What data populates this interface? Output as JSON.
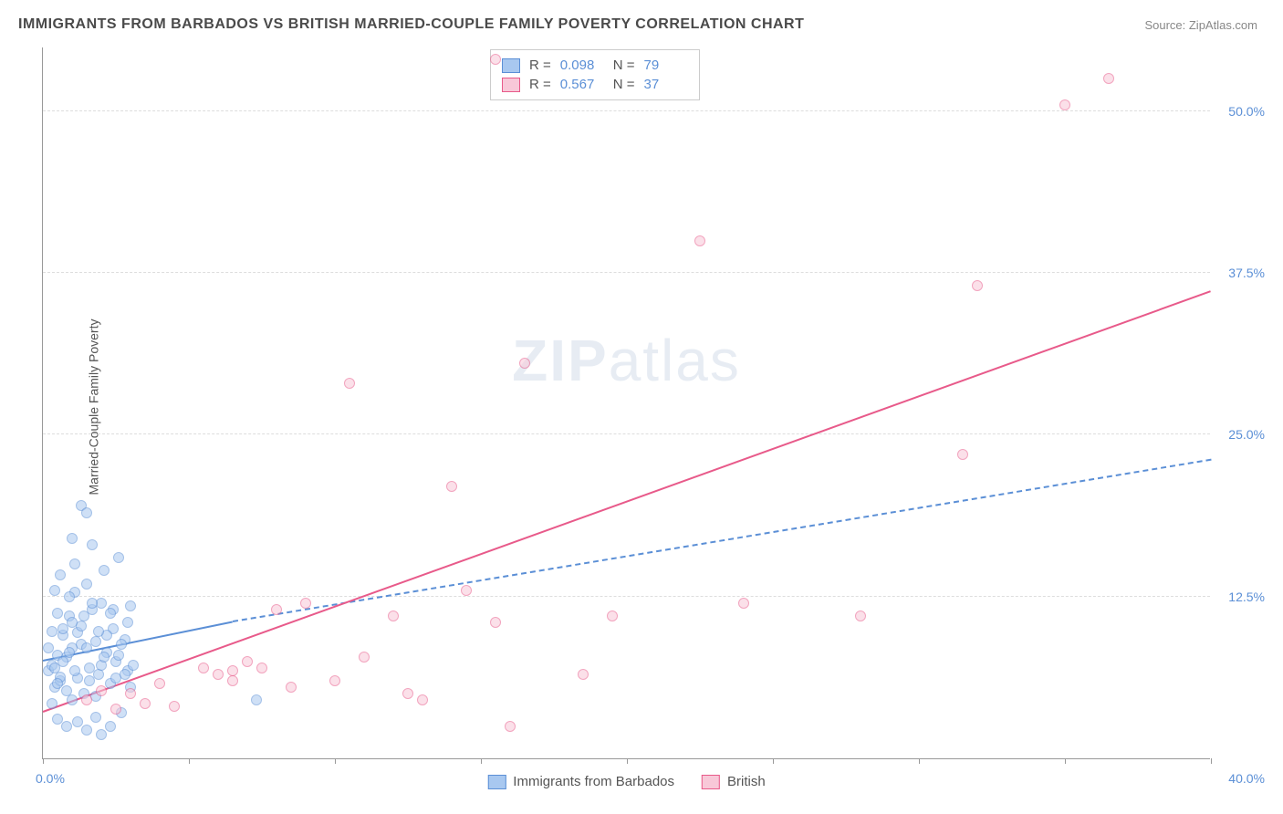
{
  "title": "IMMIGRANTS FROM BARBADOS VS BRITISH MARRIED-COUPLE FAMILY POVERTY CORRELATION CHART",
  "source_label": "Source: ",
  "source_value": "ZipAtlas.com",
  "y_axis_label": "Married-Couple Family Poverty",
  "watermark_a": "ZIP",
  "watermark_b": "atlas",
  "chart": {
    "type": "scatter",
    "xlim": [
      0,
      40
    ],
    "ylim": [
      0,
      55
    ],
    "x_tick_positions": [
      0,
      5,
      10,
      15,
      20,
      25,
      30,
      35,
      40
    ],
    "x_label_min": "0.0%",
    "x_label_max": "40.0%",
    "y_gridlines": [
      12.5,
      25.0,
      37.5,
      50.0
    ],
    "y_tick_labels": [
      "12.5%",
      "25.0%",
      "37.5%",
      "50.0%"
    ],
    "background_color": "#ffffff",
    "grid_color": "#dddddd",
    "axis_color": "#999999",
    "tick_label_color": "#5b8fd6",
    "point_radius": 6,
    "point_opacity": 0.55,
    "series": [
      {
        "name": "Immigrants from Barbados",
        "color_fill": "#a8c8f0",
        "color_stroke": "#5b8fd6",
        "R": "0.098",
        "N": "79",
        "trend": {
          "x1": 0,
          "y1": 7.5,
          "x2": 6.5,
          "y2": 10.5,
          "solid": true,
          "ext_x2": 40,
          "ext_y2": 23.0
        },
        "points": [
          [
            0.2,
            6.8
          ],
          [
            0.3,
            7.2
          ],
          [
            0.4,
            5.5
          ],
          [
            0.5,
            8.0
          ],
          [
            0.6,
            6.0
          ],
          [
            0.7,
            9.5
          ],
          [
            0.8,
            7.8
          ],
          [
            0.9,
            11.0
          ],
          [
            1.0,
            4.5
          ],
          [
            1.0,
            10.5
          ],
          [
            1.1,
            12.8
          ],
          [
            1.2,
            6.2
          ],
          [
            1.3,
            8.8
          ],
          [
            1.4,
            5.0
          ],
          [
            1.5,
            13.5
          ],
          [
            1.6,
            7.0
          ],
          [
            1.7,
            11.5
          ],
          [
            1.8,
            9.0
          ],
          [
            1.9,
            6.5
          ],
          [
            2.0,
            12.0
          ],
          [
            2.1,
            14.5
          ],
          [
            2.2,
            8.2
          ],
          [
            2.3,
            5.8
          ],
          [
            2.4,
            10.0
          ],
          [
            2.5,
            7.5
          ],
          [
            2.6,
            15.5
          ],
          [
            2.7,
            3.5
          ],
          [
            2.8,
            9.2
          ],
          [
            2.9,
            6.8
          ],
          [
            3.0,
            11.8
          ],
          [
            0.5,
            3.0
          ],
          [
            0.8,
            2.5
          ],
          [
            1.2,
            2.8
          ],
          [
            1.5,
            2.2
          ],
          [
            1.8,
            3.2
          ],
          [
            2.0,
            1.8
          ],
          [
            2.3,
            2.5
          ],
          [
            1.0,
            17.0
          ],
          [
            1.3,
            19.5
          ],
          [
            1.7,
            16.5
          ],
          [
            0.4,
            13.0
          ],
          [
            0.6,
            14.2
          ],
          [
            0.9,
            12.5
          ],
          [
            1.1,
            15.0
          ],
          [
            0.3,
            9.8
          ],
          [
            0.5,
            11.2
          ],
          [
            0.7,
            10.0
          ],
          [
            0.2,
            8.5
          ],
          [
            0.4,
            7.0
          ],
          [
            0.6,
            6.3
          ],
          [
            0.8,
            5.2
          ],
          [
            1.0,
            8.5
          ],
          [
            1.2,
            9.7
          ],
          [
            1.4,
            11.0
          ],
          [
            1.6,
            6.0
          ],
          [
            1.8,
            4.8
          ],
          [
            2.0,
            7.2
          ],
          [
            2.2,
            9.5
          ],
          [
            2.4,
            11.5
          ],
          [
            2.6,
            8.0
          ],
          [
            2.8,
            6.5
          ],
          [
            3.0,
            5.5
          ],
          [
            0.3,
            4.2
          ],
          [
            0.5,
            5.8
          ],
          [
            0.7,
            7.5
          ],
          [
            0.9,
            8.2
          ],
          [
            1.1,
            6.8
          ],
          [
            1.3,
            10.2
          ],
          [
            1.5,
            8.5
          ],
          [
            1.7,
            12.0
          ],
          [
            1.9,
            9.8
          ],
          [
            2.1,
            7.8
          ],
          [
            2.3,
            11.2
          ],
          [
            2.5,
            6.2
          ],
          [
            2.7,
            8.8
          ],
          [
            2.9,
            10.5
          ],
          [
            3.1,
            7.2
          ],
          [
            7.3,
            4.5
          ],
          [
            1.5,
            19.0
          ]
        ]
      },
      {
        "name": "British",
        "color_fill": "#f8c8d8",
        "color_stroke": "#e85a8a",
        "R": "0.567",
        "N": "37",
        "trend": {
          "x1": 0,
          "y1": 3.5,
          "x2": 40,
          "y2": 36.0,
          "solid": true
        },
        "points": [
          [
            1.5,
            4.5
          ],
          [
            2.0,
            5.2
          ],
          [
            2.5,
            3.8
          ],
          [
            3.0,
            5.0
          ],
          [
            3.5,
            4.2
          ],
          [
            4.0,
            5.8
          ],
          [
            4.5,
            4.0
          ],
          [
            5.5,
            7.0
          ],
          [
            6.0,
            6.5
          ],
          [
            6.5,
            6.8
          ],
          [
            7.0,
            7.5
          ],
          [
            8.0,
            11.5
          ],
          [
            8.5,
            5.5
          ],
          [
            9.0,
            12.0
          ],
          [
            10.0,
            6.0
          ],
          [
            10.5,
            29.0
          ],
          [
            11.0,
            7.8
          ],
          [
            12.0,
            11.0
          ],
          [
            12.5,
            5.0
          ],
          [
            13.0,
            4.5
          ],
          [
            14.0,
            21.0
          ],
          [
            14.5,
            13.0
          ],
          [
            15.5,
            10.5
          ],
          [
            16.0,
            2.5
          ],
          [
            16.5,
            30.5
          ],
          [
            15.5,
            54.0
          ],
          [
            18.5,
            6.5
          ],
          [
            19.5,
            11.0
          ],
          [
            22.5,
            40.0
          ],
          [
            24.0,
            12.0
          ],
          [
            28.0,
            11.0
          ],
          [
            31.5,
            23.5
          ],
          [
            32.0,
            36.5
          ],
          [
            35.0,
            50.5
          ],
          [
            36.5,
            52.5
          ],
          [
            6.5,
            6.0
          ],
          [
            7.5,
            7.0
          ]
        ]
      }
    ],
    "legend_labels": [
      "Immigrants from Barbados",
      "British"
    ],
    "stats_labels": {
      "R": "R =",
      "N": "N ="
    }
  }
}
